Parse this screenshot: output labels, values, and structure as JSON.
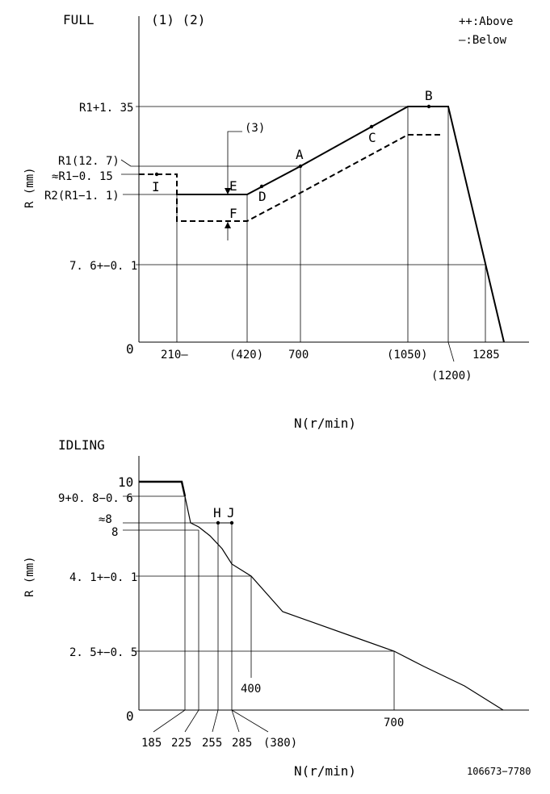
{
  "full": {
    "title": "FULL",
    "notes": "(1) (2)",
    "legend": {
      "above": "++:Above",
      "below": "—:Below"
    },
    "y_axis_label": "R (mm)",
    "x_axis_label": "N(r/min)",
    "y_labels": {
      "r1_135": "R1+1. 35",
      "r1_127": "R1(12. 7)",
      "r1_015": "≈R1−0. 15",
      "r2": "R2(R1−1. 1)",
      "v76": "7. 6+−0. 1",
      "zero": "0"
    },
    "x_labels": {
      "n210": "210—",
      "n420": "(420)",
      "n700": "700",
      "n1050": "(1050)",
      "n1200": "(1200)",
      "n1285": "1285"
    },
    "points": {
      "A": "A",
      "B": "B",
      "C": "C",
      "D": "D",
      "E": "E",
      "F": "F",
      "I": "I"
    },
    "note3": "(3)"
  },
  "idling": {
    "title": "IDLING",
    "y_axis_label": "R (mm)",
    "x_axis_label": "N(r/min)",
    "y_labels": {
      "v10": "10",
      "v9": "9+0. 8−0. 6",
      "v8a": "≈8",
      "v8": "8",
      "v41": "4. 1+−0. 1",
      "v25": "2. 5+−0. 5",
      "zero": "0"
    },
    "x_labels": {
      "n185": "185",
      "n225": "225",
      "n255": "255",
      "n285": "285",
      "n380": "(380)",
      "n400": "400",
      "n700": "700"
    },
    "points": {
      "H": "H",
      "J": "J"
    }
  },
  "doc_id": "106673−7780"
}
